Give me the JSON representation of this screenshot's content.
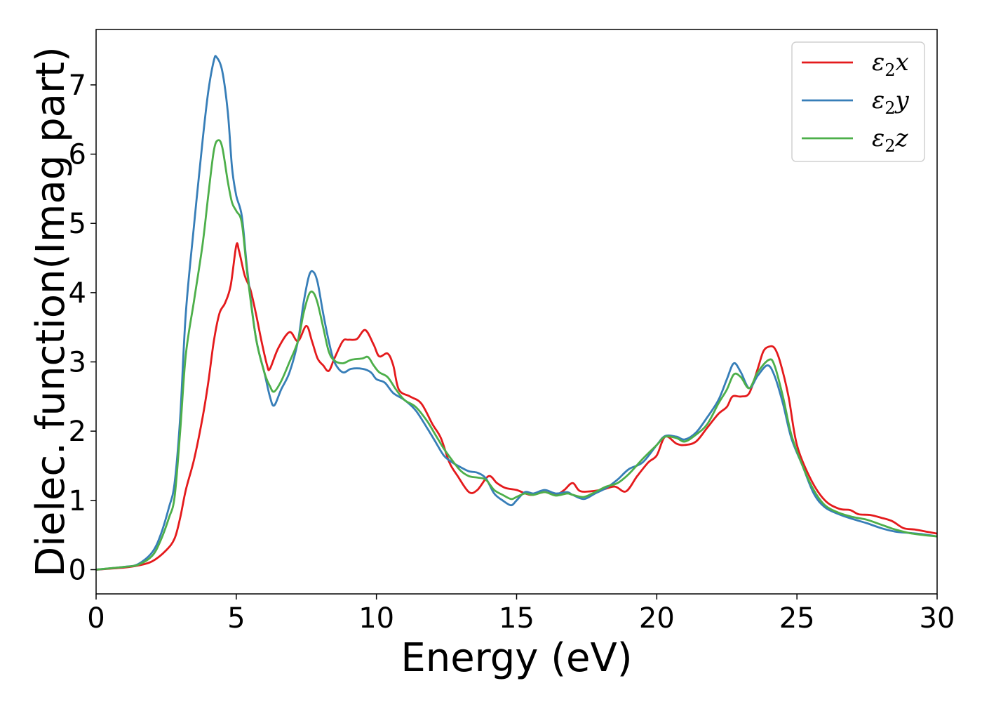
{
  "chart_data": {
    "type": "line",
    "xlabel": "Energy (eV)",
    "ylabel": "Dielec. function(Imag part)",
    "xlim": [
      0,
      30
    ],
    "ylim": [
      -0.35,
      7.8
    ],
    "xticks": [
      0,
      5,
      10,
      15,
      20,
      25,
      30
    ],
    "yticks": [
      0,
      1,
      2,
      3,
      4,
      5,
      6,
      7
    ],
    "grid": false,
    "legend_position": "top-right",
    "series": [
      {
        "name": "ε₂x",
        "legend": {
          "symbol": "ε",
          "sub": "2",
          "tail": "x"
        },
        "color": "#e41a1c",
        "points": [
          [
            0,
            0
          ],
          [
            1,
            0.03
          ],
          [
            1.5,
            0.06
          ],
          [
            2,
            0.12
          ],
          [
            2.5,
            0.28
          ],
          [
            2.8,
            0.45
          ],
          [
            3.0,
            0.75
          ],
          [
            3.2,
            1.15
          ],
          [
            3.5,
            1.6
          ],
          [
            3.8,
            2.2
          ],
          [
            4.0,
            2.7
          ],
          [
            4.2,
            3.3
          ],
          [
            4.4,
            3.7
          ],
          [
            4.6,
            3.85
          ],
          [
            4.8,
            4.1
          ],
          [
            5.0,
            4.68
          ],
          [
            5.1,
            4.6
          ],
          [
            5.3,
            4.25
          ],
          [
            5.5,
            4.05
          ],
          [
            5.7,
            3.7
          ],
          [
            5.9,
            3.3
          ],
          [
            6.1,
            2.95
          ],
          [
            6.2,
            2.9
          ],
          [
            6.5,
            3.2
          ],
          [
            6.9,
            3.43
          ],
          [
            7.2,
            3.3
          ],
          [
            7.5,
            3.52
          ],
          [
            7.7,
            3.3
          ],
          [
            7.9,
            3.05
          ],
          [
            8.1,
            2.95
          ],
          [
            8.3,
            2.87
          ],
          [
            8.5,
            3.05
          ],
          [
            8.8,
            3.3
          ],
          [
            9.0,
            3.32
          ],
          [
            9.3,
            3.33
          ],
          [
            9.6,
            3.46
          ],
          [
            9.9,
            3.25
          ],
          [
            10.1,
            3.08
          ],
          [
            10.4,
            3.12
          ],
          [
            10.6,
            2.95
          ],
          [
            10.8,
            2.6
          ],
          [
            11.2,
            2.5
          ],
          [
            11.6,
            2.4
          ],
          [
            12.0,
            2.1
          ],
          [
            12.3,
            1.9
          ],
          [
            12.6,
            1.55
          ],
          [
            12.9,
            1.35
          ],
          [
            13.3,
            1.12
          ],
          [
            13.6,
            1.15
          ],
          [
            14.0,
            1.35
          ],
          [
            14.3,
            1.25
          ],
          [
            14.6,
            1.18
          ],
          [
            15.0,
            1.15
          ],
          [
            15.5,
            1.08
          ],
          [
            16.0,
            1.12
          ],
          [
            16.4,
            1.08
          ],
          [
            16.7,
            1.15
          ],
          [
            17.0,
            1.25
          ],
          [
            17.3,
            1.13
          ],
          [
            18.0,
            1.15
          ],
          [
            18.5,
            1.2
          ],
          [
            18.9,
            1.13
          ],
          [
            19.3,
            1.35
          ],
          [
            19.7,
            1.55
          ],
          [
            20.0,
            1.65
          ],
          [
            20.3,
            1.92
          ],
          [
            20.7,
            1.82
          ],
          [
            21.0,
            1.8
          ],
          [
            21.4,
            1.85
          ],
          [
            21.8,
            2.05
          ],
          [
            22.2,
            2.25
          ],
          [
            22.5,
            2.35
          ],
          [
            22.7,
            2.5
          ],
          [
            23.0,
            2.5
          ],
          [
            23.3,
            2.55
          ],
          [
            23.6,
            2.9
          ],
          [
            23.8,
            3.15
          ],
          [
            24.0,
            3.22
          ],
          [
            24.2,
            3.2
          ],
          [
            24.4,
            3.0
          ],
          [
            24.7,
            2.5
          ],
          [
            25.0,
            1.8
          ],
          [
            25.5,
            1.3
          ],
          [
            26.0,
            1.0
          ],
          [
            26.5,
            0.88
          ],
          [
            26.9,
            0.86
          ],
          [
            27.2,
            0.8
          ],
          [
            27.6,
            0.79
          ],
          [
            28.0,
            0.75
          ],
          [
            28.4,
            0.7
          ],
          [
            28.8,
            0.6
          ],
          [
            29.2,
            0.58
          ],
          [
            29.6,
            0.55
          ],
          [
            30.0,
            0.52
          ]
        ]
      },
      {
        "name": "ε₂y",
        "legend": {
          "symbol": "ε",
          "sub": "2",
          "tail": "y"
        },
        "color": "#377eb8",
        "points": [
          [
            0,
            0
          ],
          [
            1,
            0.04
          ],
          [
            1.5,
            0.08
          ],
          [
            2,
            0.25
          ],
          [
            2.3,
            0.5
          ],
          [
            2.6,
            0.9
          ],
          [
            2.8,
            1.25
          ],
          [
            3.0,
            2.2
          ],
          [
            3.2,
            3.7
          ],
          [
            3.5,
            5.0
          ],
          [
            3.8,
            6.2
          ],
          [
            4.0,
            6.9
          ],
          [
            4.2,
            7.35
          ],
          [
            4.3,
            7.4
          ],
          [
            4.5,
            7.2
          ],
          [
            4.7,
            6.6
          ],
          [
            4.85,
            5.8
          ],
          [
            5.0,
            5.4
          ],
          [
            5.2,
            5.1
          ],
          [
            5.4,
            4.3
          ],
          [
            5.7,
            3.35
          ],
          [
            6.0,
            2.85
          ],
          [
            6.2,
            2.5
          ],
          [
            6.35,
            2.37
          ],
          [
            6.6,
            2.6
          ],
          [
            6.9,
            2.85
          ],
          [
            7.2,
            3.3
          ],
          [
            7.4,
            3.85
          ],
          [
            7.6,
            4.25
          ],
          [
            7.75,
            4.3
          ],
          [
            7.9,
            4.15
          ],
          [
            8.1,
            3.7
          ],
          [
            8.3,
            3.3
          ],
          [
            8.5,
            3.0
          ],
          [
            8.8,
            2.85
          ],
          [
            9.1,
            2.9
          ],
          [
            9.5,
            2.9
          ],
          [
            9.8,
            2.85
          ],
          [
            10.0,
            2.75
          ],
          [
            10.3,
            2.7
          ],
          [
            10.6,
            2.55
          ],
          [
            11.0,
            2.45
          ],
          [
            11.4,
            2.3
          ],
          [
            11.8,
            2.05
          ],
          [
            12.1,
            1.85
          ],
          [
            12.4,
            1.65
          ],
          [
            12.7,
            1.55
          ],
          [
            13.0,
            1.48
          ],
          [
            13.3,
            1.42
          ],
          [
            13.6,
            1.4
          ],
          [
            13.9,
            1.32
          ],
          [
            14.2,
            1.1
          ],
          [
            14.5,
            1.0
          ],
          [
            14.8,
            0.93
          ],
          [
            15.0,
            1.0
          ],
          [
            15.3,
            1.12
          ],
          [
            15.6,
            1.1
          ],
          [
            16.0,
            1.15
          ],
          [
            16.4,
            1.1
          ],
          [
            16.8,
            1.12
          ],
          [
            17.0,
            1.08
          ],
          [
            17.4,
            1.02
          ],
          [
            17.8,
            1.1
          ],
          [
            18.2,
            1.18
          ],
          [
            18.6,
            1.3
          ],
          [
            19.0,
            1.45
          ],
          [
            19.5,
            1.55
          ],
          [
            20.0,
            1.8
          ],
          [
            20.3,
            1.93
          ],
          [
            20.7,
            1.92
          ],
          [
            21.0,
            1.88
          ],
          [
            21.4,
            1.98
          ],
          [
            21.8,
            2.2
          ],
          [
            22.2,
            2.45
          ],
          [
            22.5,
            2.75
          ],
          [
            22.75,
            2.98
          ],
          [
            23.0,
            2.85
          ],
          [
            23.3,
            2.62
          ],
          [
            23.6,
            2.8
          ],
          [
            23.95,
            2.95
          ],
          [
            24.2,
            2.8
          ],
          [
            24.5,
            2.4
          ],
          [
            24.8,
            1.9
          ],
          [
            25.2,
            1.5
          ],
          [
            25.6,
            1.1
          ],
          [
            26.0,
            0.9
          ],
          [
            26.5,
            0.8
          ],
          [
            27.0,
            0.73
          ],
          [
            27.5,
            0.67
          ],
          [
            28.0,
            0.6
          ],
          [
            28.5,
            0.55
          ],
          [
            29.0,
            0.53
          ],
          [
            29.5,
            0.51
          ],
          [
            30.0,
            0.48
          ]
        ]
      },
      {
        "name": "ε₂z",
        "legend": {
          "symbol": "ε",
          "sub": "2",
          "tail": "z"
        },
        "color": "#4daf4a",
        "points": [
          [
            0,
            0
          ],
          [
            1,
            0.04
          ],
          [
            1.5,
            0.07
          ],
          [
            2,
            0.2
          ],
          [
            2.3,
            0.42
          ],
          [
            2.6,
            0.75
          ],
          [
            2.8,
            1.05
          ],
          [
            3.0,
            2.0
          ],
          [
            3.2,
            3.1
          ],
          [
            3.5,
            3.9
          ],
          [
            3.8,
            4.7
          ],
          [
            4.0,
            5.4
          ],
          [
            4.2,
            6.05
          ],
          [
            4.35,
            6.2
          ],
          [
            4.5,
            6.1
          ],
          [
            4.7,
            5.6
          ],
          [
            4.85,
            5.3
          ],
          [
            5.0,
            5.18
          ],
          [
            5.2,
            5.0
          ],
          [
            5.4,
            4.25
          ],
          [
            5.7,
            3.35
          ],
          [
            6.0,
            2.85
          ],
          [
            6.2,
            2.65
          ],
          [
            6.35,
            2.57
          ],
          [
            6.6,
            2.72
          ],
          [
            6.9,
            3.0
          ],
          [
            7.2,
            3.3
          ],
          [
            7.4,
            3.7
          ],
          [
            7.6,
            3.98
          ],
          [
            7.75,
            4.0
          ],
          [
            7.9,
            3.85
          ],
          [
            8.1,
            3.5
          ],
          [
            8.3,
            3.15
          ],
          [
            8.5,
            3.02
          ],
          [
            8.8,
            2.98
          ],
          [
            9.1,
            3.03
          ],
          [
            9.5,
            3.05
          ],
          [
            9.7,
            3.07
          ],
          [
            9.9,
            2.95
          ],
          [
            10.1,
            2.85
          ],
          [
            10.4,
            2.78
          ],
          [
            10.7,
            2.6
          ],
          [
            11.0,
            2.45
          ],
          [
            11.4,
            2.35
          ],
          [
            11.8,
            2.15
          ],
          [
            12.1,
            1.95
          ],
          [
            12.4,
            1.75
          ],
          [
            12.7,
            1.58
          ],
          [
            13.0,
            1.43
          ],
          [
            13.3,
            1.35
          ],
          [
            13.6,
            1.33
          ],
          [
            13.9,
            1.3
          ],
          [
            14.2,
            1.15
          ],
          [
            14.5,
            1.08
          ],
          [
            14.8,
            1.02
          ],
          [
            15.0,
            1.05
          ],
          [
            15.3,
            1.1
          ],
          [
            15.6,
            1.08
          ],
          [
            16.0,
            1.12
          ],
          [
            16.4,
            1.07
          ],
          [
            16.8,
            1.1
          ],
          [
            17.0,
            1.08
          ],
          [
            17.4,
            1.05
          ],
          [
            17.8,
            1.12
          ],
          [
            18.2,
            1.2
          ],
          [
            18.6,
            1.25
          ],
          [
            19.0,
            1.38
          ],
          [
            19.5,
            1.6
          ],
          [
            20.0,
            1.8
          ],
          [
            20.3,
            1.92
          ],
          [
            20.7,
            1.9
          ],
          [
            21.0,
            1.85
          ],
          [
            21.4,
            1.95
          ],
          [
            21.8,
            2.1
          ],
          [
            22.2,
            2.4
          ],
          [
            22.5,
            2.6
          ],
          [
            22.75,
            2.82
          ],
          [
            23.0,
            2.78
          ],
          [
            23.3,
            2.62
          ],
          [
            23.6,
            2.85
          ],
          [
            24.0,
            3.03
          ],
          [
            24.2,
            2.95
          ],
          [
            24.5,
            2.5
          ],
          [
            24.8,
            1.95
          ],
          [
            25.2,
            1.5
          ],
          [
            25.6,
            1.15
          ],
          [
            26.0,
            0.93
          ],
          [
            26.5,
            0.82
          ],
          [
            27.0,
            0.76
          ],
          [
            27.5,
            0.72
          ],
          [
            28.0,
            0.65
          ],
          [
            28.5,
            0.58
          ],
          [
            29.0,
            0.53
          ],
          [
            29.5,
            0.5
          ],
          [
            30.0,
            0.48
          ]
        ]
      }
    ]
  }
}
